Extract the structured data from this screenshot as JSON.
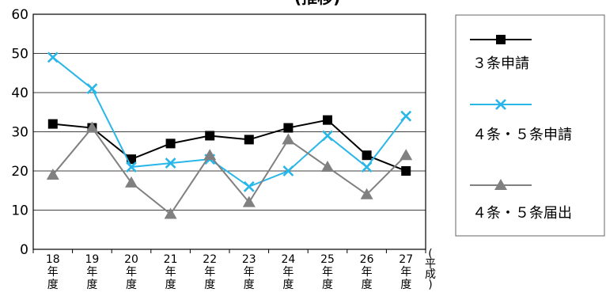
{
  "header": {
    "title_fragment": "(推移)"
  },
  "chart_data": {
    "type": "line",
    "categories": [
      "18",
      "19",
      "20",
      "21",
      "22",
      "23",
      "24",
      "25",
      "26",
      "27"
    ],
    "category_suffix": [
      "年",
      "度"
    ],
    "era_label": [
      "(",
      "平",
      "成",
      ")"
    ],
    "ylim": [
      0,
      60
    ],
    "yticks": [
      0,
      10,
      20,
      30,
      40,
      50,
      60
    ],
    "grid": true,
    "legend_position": "right",
    "series": [
      {
        "name": "３条申請",
        "color": "#000000",
        "marker": "square",
        "values": [
          32,
          31,
          23,
          27,
          29,
          28,
          31,
          33,
          24,
          20
        ]
      },
      {
        "name": "４条・５条申請",
        "color": "#29b6e8",
        "marker": "x",
        "values": [
          49,
          41,
          21,
          22,
          23,
          16,
          20,
          29,
          21,
          34
        ]
      },
      {
        "name": "４条・５条届出",
        "color": "#808080",
        "marker": "triangle",
        "values": [
          19,
          31,
          17,
          9,
          24,
          12,
          28,
          21,
          14,
          24
        ]
      }
    ]
  }
}
